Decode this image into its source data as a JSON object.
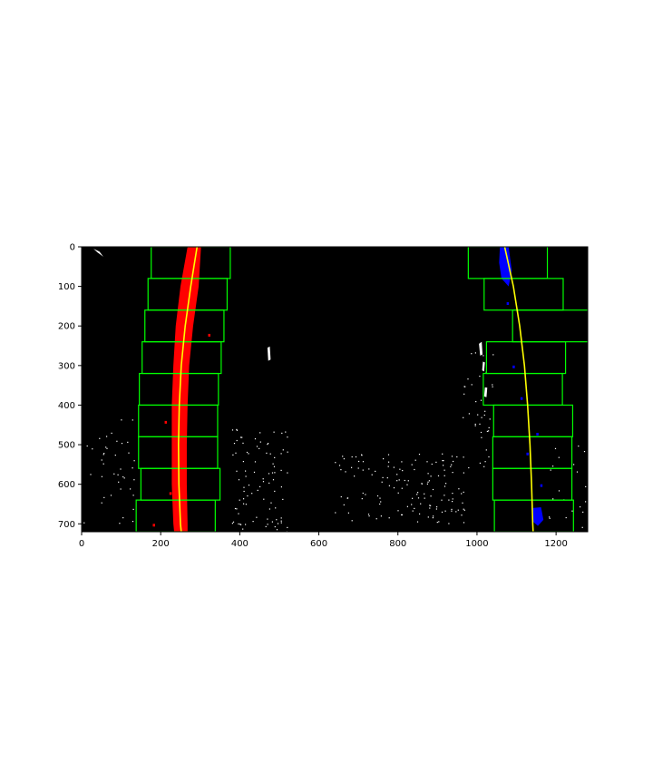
{
  "colors": {
    "background": "#000000",
    "left_lane_pixels": "#ff0000",
    "right_lane_pixels": "#0000ff",
    "fit_line": "#ffff00",
    "search_window": "#00ff00",
    "noise_pixels": "#ffffff",
    "axes": "#000000"
  },
  "chart_data": {
    "type": "image",
    "title": "",
    "xlabel": "",
    "ylabel": "",
    "xlim": [
      0,
      1280
    ],
    "ylim": [
      720,
      0
    ],
    "x_ticks": [
      0,
      200,
      400,
      600,
      800,
      1000,
      1200
    ],
    "y_ticks": [
      0,
      100,
      200,
      300,
      400,
      500,
      600,
      700
    ],
    "grid": false,
    "legend": "none",
    "sliding_windows": [
      {
        "lane": "left",
        "x0": 176,
        "x1": 376,
        "y0": 0,
        "y1": 80
      },
      {
        "lane": "left",
        "x0": 168,
        "x1": 368,
        "y0": 80,
        "y1": 160
      },
      {
        "lane": "left",
        "x0": 160,
        "x1": 360,
        "y0": 160,
        "y1": 240
      },
      {
        "lane": "left",
        "x0": 153,
        "x1": 353,
        "y0": 240,
        "y1": 320
      },
      {
        "lane": "left",
        "x0": 146,
        "x1": 346,
        "y0": 320,
        "y1": 400
      },
      {
        "lane": "left",
        "x0": 144,
        "x1": 344,
        "y0": 400,
        "y1": 480
      },
      {
        "lane": "left",
        "x0": 144,
        "x1": 344,
        "y0": 480,
        "y1": 560
      },
      {
        "lane": "left",
        "x0": 150,
        "x1": 350,
        "y0": 560,
        "y1": 640
      },
      {
        "lane": "left",
        "x0": 138,
        "x1": 338,
        "y0": 640,
        "y1": 720
      },
      {
        "lane": "right",
        "x0": 978,
        "x1": 1178,
        "y0": 0,
        "y1": 80
      },
      {
        "lane": "right",
        "x0": 1018,
        "x1": 1218,
        "y0": 80,
        "y1": 160
      },
      {
        "lane": "right",
        "x0": 1090,
        "x1": 1290,
        "y0": 160,
        "y1": 240
      },
      {
        "lane": "right",
        "x0": 1024,
        "x1": 1224,
        "y0": 240,
        "y1": 320
      },
      {
        "lane": "right",
        "x0": 1016,
        "x1": 1216,
        "y0": 320,
        "y1": 400
      },
      {
        "lane": "right",
        "x0": 1042,
        "x1": 1242,
        "y0": 400,
        "y1": 480
      },
      {
        "lane": "right",
        "x0": 1040,
        "x1": 1240,
        "y0": 480,
        "y1": 560
      },
      {
        "lane": "right",
        "x0": 1040,
        "x1": 1240,
        "y0": 560,
        "y1": 640
      },
      {
        "lane": "right",
        "x0": 1044,
        "x1": 1244,
        "y0": 640,
        "y1": 720
      }
    ],
    "lane_fits": [
      {
        "lane": "left",
        "points": [
          [
            292,
            0
          ],
          [
            276,
            100
          ],
          [
            262,
            200
          ],
          [
            252,
            300
          ],
          [
            247,
            400
          ],
          [
            245,
            500
          ],
          [
            246,
            600
          ],
          [
            250,
            700
          ],
          [
            252,
            720
          ]
        ]
      },
      {
        "lane": "right",
        "points": [
          [
            1070,
            0
          ],
          [
            1092,
            100
          ],
          [
            1108,
            200
          ],
          [
            1120,
            300
          ],
          [
            1128,
            400
          ],
          [
            1134,
            500
          ],
          [
            1138,
            600
          ],
          [
            1141,
            700
          ],
          [
            1142,
            720
          ]
        ]
      }
    ],
    "lane_pixel_bands": [
      {
        "lane": "left",
        "points": [
          [
            270,
            0
          ],
          [
            302,
            0
          ],
          [
            296,
            100
          ],
          [
            282,
            200
          ],
          [
            272,
            300
          ],
          [
            268,
            400
          ],
          [
            266,
            500
          ],
          [
            266,
            600
          ],
          [
            268,
            700
          ],
          [
            268,
            720
          ],
          [
            234,
            720
          ],
          [
            232,
            700
          ],
          [
            228,
            600
          ],
          [
            228,
            500
          ],
          [
            228,
            400
          ],
          [
            232,
            300
          ],
          [
            238,
            200
          ],
          [
            250,
            100
          ],
          [
            268,
            0
          ]
        ]
      },
      {
        "lane": "right",
        "points": [
          [
            1058,
            0
          ],
          [
            1080,
            0
          ],
          [
            1088,
            60
          ],
          [
            1080,
            100
          ],
          [
            1062,
            80
          ],
          [
            1056,
            40
          ]
        ]
      },
      {
        "lane": "right",
        "points": [
          [
            1140,
            660
          ],
          [
            1162,
            658
          ],
          [
            1168,
            690
          ],
          [
            1154,
            705
          ],
          [
            1142,
            695
          ]
        ]
      }
    ],
    "noise_blobs": [
      [
        [
          30,
          5
        ],
        [
          40,
          14
        ],
        [
          55,
          25
        ],
        [
          45,
          12
        ]
      ],
      [
        [
          470,
          255
        ],
        [
          476,
          252
        ],
        [
          478,
          285
        ],
        [
          472,
          288
        ]
      ],
      [
        [
          1005,
          245
        ],
        [
          1012,
          240
        ],
        [
          1014,
          272
        ],
        [
          1008,
          275
        ]
      ],
      [
        [
          1015,
          290
        ],
        [
          1020,
          292
        ],
        [
          1018,
          315
        ],
        [
          1013,
          312
        ]
      ],
      [
        [
          1020,
          355
        ],
        [
          1026,
          356
        ],
        [
          1024,
          380
        ],
        [
          1018,
          378
        ]
      ]
    ]
  }
}
